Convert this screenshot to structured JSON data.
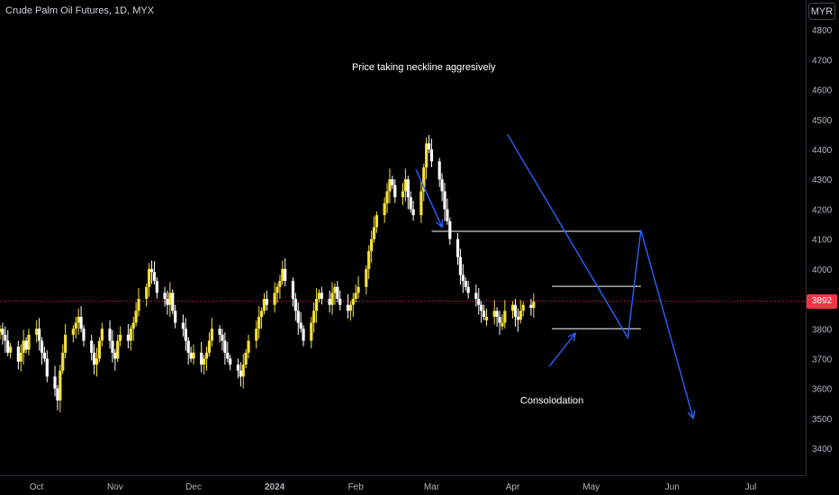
{
  "header": {
    "title": "Crude Palm Oil Futures, 1D, MYX",
    "currency": "MYR"
  },
  "current_price": {
    "value": 3892,
    "label": "3892",
    "color": "#f23645"
  },
  "colors": {
    "bull": "#f5e03a",
    "bear": "#ffffff",
    "trendline": "#2962ff",
    "level": "#ffffff"
  },
  "chart_data": {
    "type": "candlestick",
    "title": "Crude Palm Oil Futures, 1D, MYX",
    "ylim": [
      3310,
      4900
    ],
    "yticks": [
      3400,
      3500,
      3600,
      3700,
      3800,
      3900,
      4000,
      4100,
      4200,
      4300,
      4400,
      4500,
      4600,
      4700,
      4800
    ],
    "date_range": [
      "2023-09-18",
      "2024-07-22"
    ],
    "xticks": [
      {
        "date": "2023-10-02",
        "label": "Oct"
      },
      {
        "date": "2023-11-01",
        "label": "Nov"
      },
      {
        "date": "2023-12-01",
        "label": "Dec"
      },
      {
        "date": "2024-01-01",
        "label": "2024"
      },
      {
        "date": "2024-02-01",
        "label": "Feb"
      },
      {
        "date": "2024-03-01",
        "label": "Mar"
      },
      {
        "date": "2024-04-01",
        "label": "Apr"
      },
      {
        "date": "2024-05-01",
        "label": "May"
      },
      {
        "date": "2024-06-01",
        "label": "Jun"
      },
      {
        "date": "2024-07-01",
        "label": "Jul"
      }
    ],
    "closes": [
      3800,
      3780,
      3760,
      3720,
      3740,
      3690,
      3720,
      3760,
      3730,
      3780,
      3800,
      3760,
      3720,
      3700,
      3640,
      3600,
      3560,
      3660,
      3720,
      3780,
      3800,
      3820,
      3840,
      3800,
      3760,
      3720,
      3680,
      3700,
      3760,
      3800,
      3760,
      3720,
      3700,
      3760,
      3780,
      3760,
      3800,
      3820,
      3860,
      3900,
      3940,
      4000,
      3990,
      3960,
      3920,
      3900,
      3880,
      3920,
      3860,
      3820,
      3800,
      3760,
      3720,
      3700,
      3720,
      3680,
      3700,
      3720,
      3760,
      3800,
      3780,
      3760,
      3720,
      3700,
      3680,
      3660,
      3640,
      3680,
      3720,
      3760,
      3800,
      3840,
      3860,
      3900,
      3880,
      3920,
      3940,
      3960,
      4000,
      3960,
      3900,
      3860,
      3820,
      3800,
      3760,
      3820,
      3860,
      3900,
      3920,
      3900,
      3880,
      3920,
      3940,
      3900,
      3880,
      3860,
      3880,
      3900,
      3920,
      3940,
      4000,
      4060,
      4100,
      4140,
      4180,
      4220,
      4260,
      4300,
      4280,
      4240,
      4260,
      4300,
      4240,
      4200,
      4180,
      4260,
      4340,
      4420,
      4400,
      4360,
      4300,
      4260,
      4200,
      4160,
      4100,
      4040,
      3980,
      3960,
      3940,
      3920,
      3900,
      3880,
      3860,
      3840,
      3840,
      3860,
      3840,
      3820,
      3820,
      3860,
      3880,
      3840,
      3830,
      3860,
      3880,
      3870,
      3890
    ]
  },
  "levels": [
    {
      "price": 4126,
      "from": "2024-03-01",
      "to": "2024-05-20"
    },
    {
      "price": 3942,
      "from": "2024-04-16",
      "to": "2024-05-20"
    },
    {
      "price": 3800,
      "from": "2024-04-16",
      "to": "2024-05-20"
    }
  ],
  "projection_path": [
    {
      "date": "2024-03-30",
      "price": 4450
    },
    {
      "date": "2024-05-15",
      "price": 3770
    },
    {
      "date": "2024-05-20",
      "price": 4130
    },
    {
      "date": "2024-06-09",
      "price": 3500
    }
  ],
  "annotations": [
    {
      "text": "Price taking neckline aggresively",
      "date": "2024-02-27",
      "price": 4665,
      "arrow_from": {
        "date": "2024-02-24",
        "price": 4333
      },
      "arrow_to": {
        "date": "2024-03-05",
        "price": 4140
      }
    },
    {
      "text": "Consolodation",
      "date": "2024-04-16",
      "price": 3550,
      "arrow_from": {
        "date": "2024-04-15",
        "price": 3675
      },
      "arrow_to": {
        "date": "2024-04-25",
        "price": 3785
      }
    }
  ]
}
